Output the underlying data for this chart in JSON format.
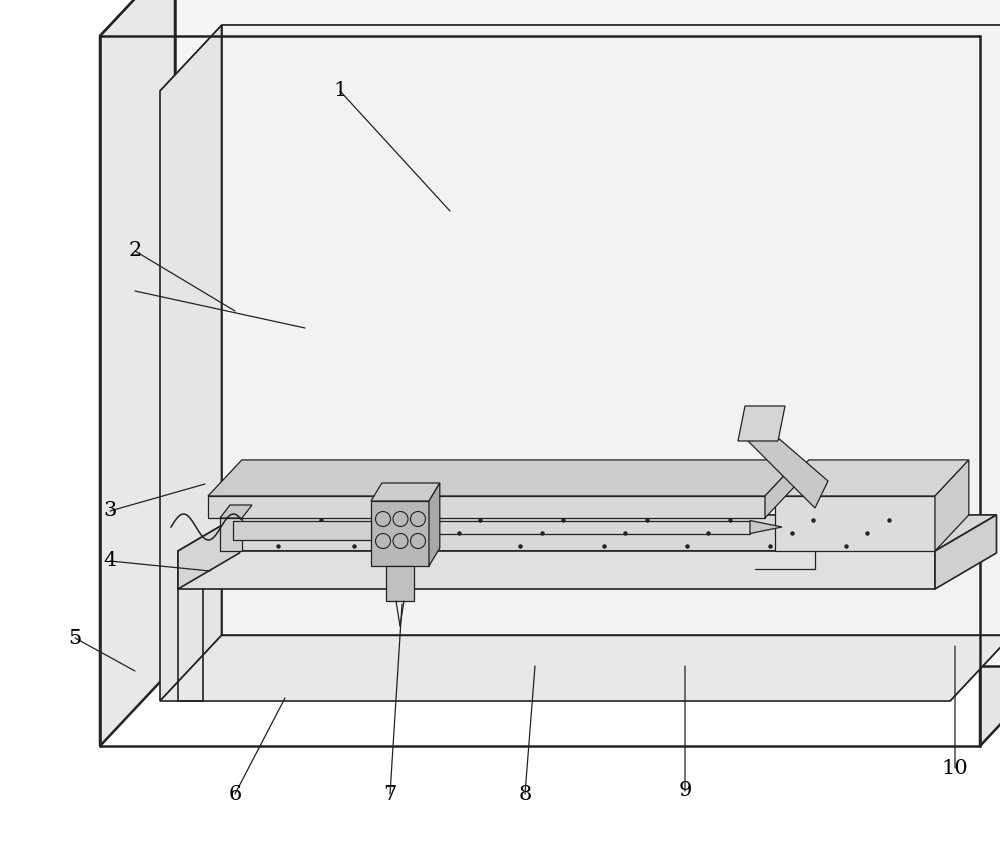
{
  "bg_color": "#ffffff",
  "lc": "#222222",
  "lw_outer": 1.8,
  "lw_inner": 1.2,
  "lw_detail": 0.9,
  "label_fontsize": 15
}
